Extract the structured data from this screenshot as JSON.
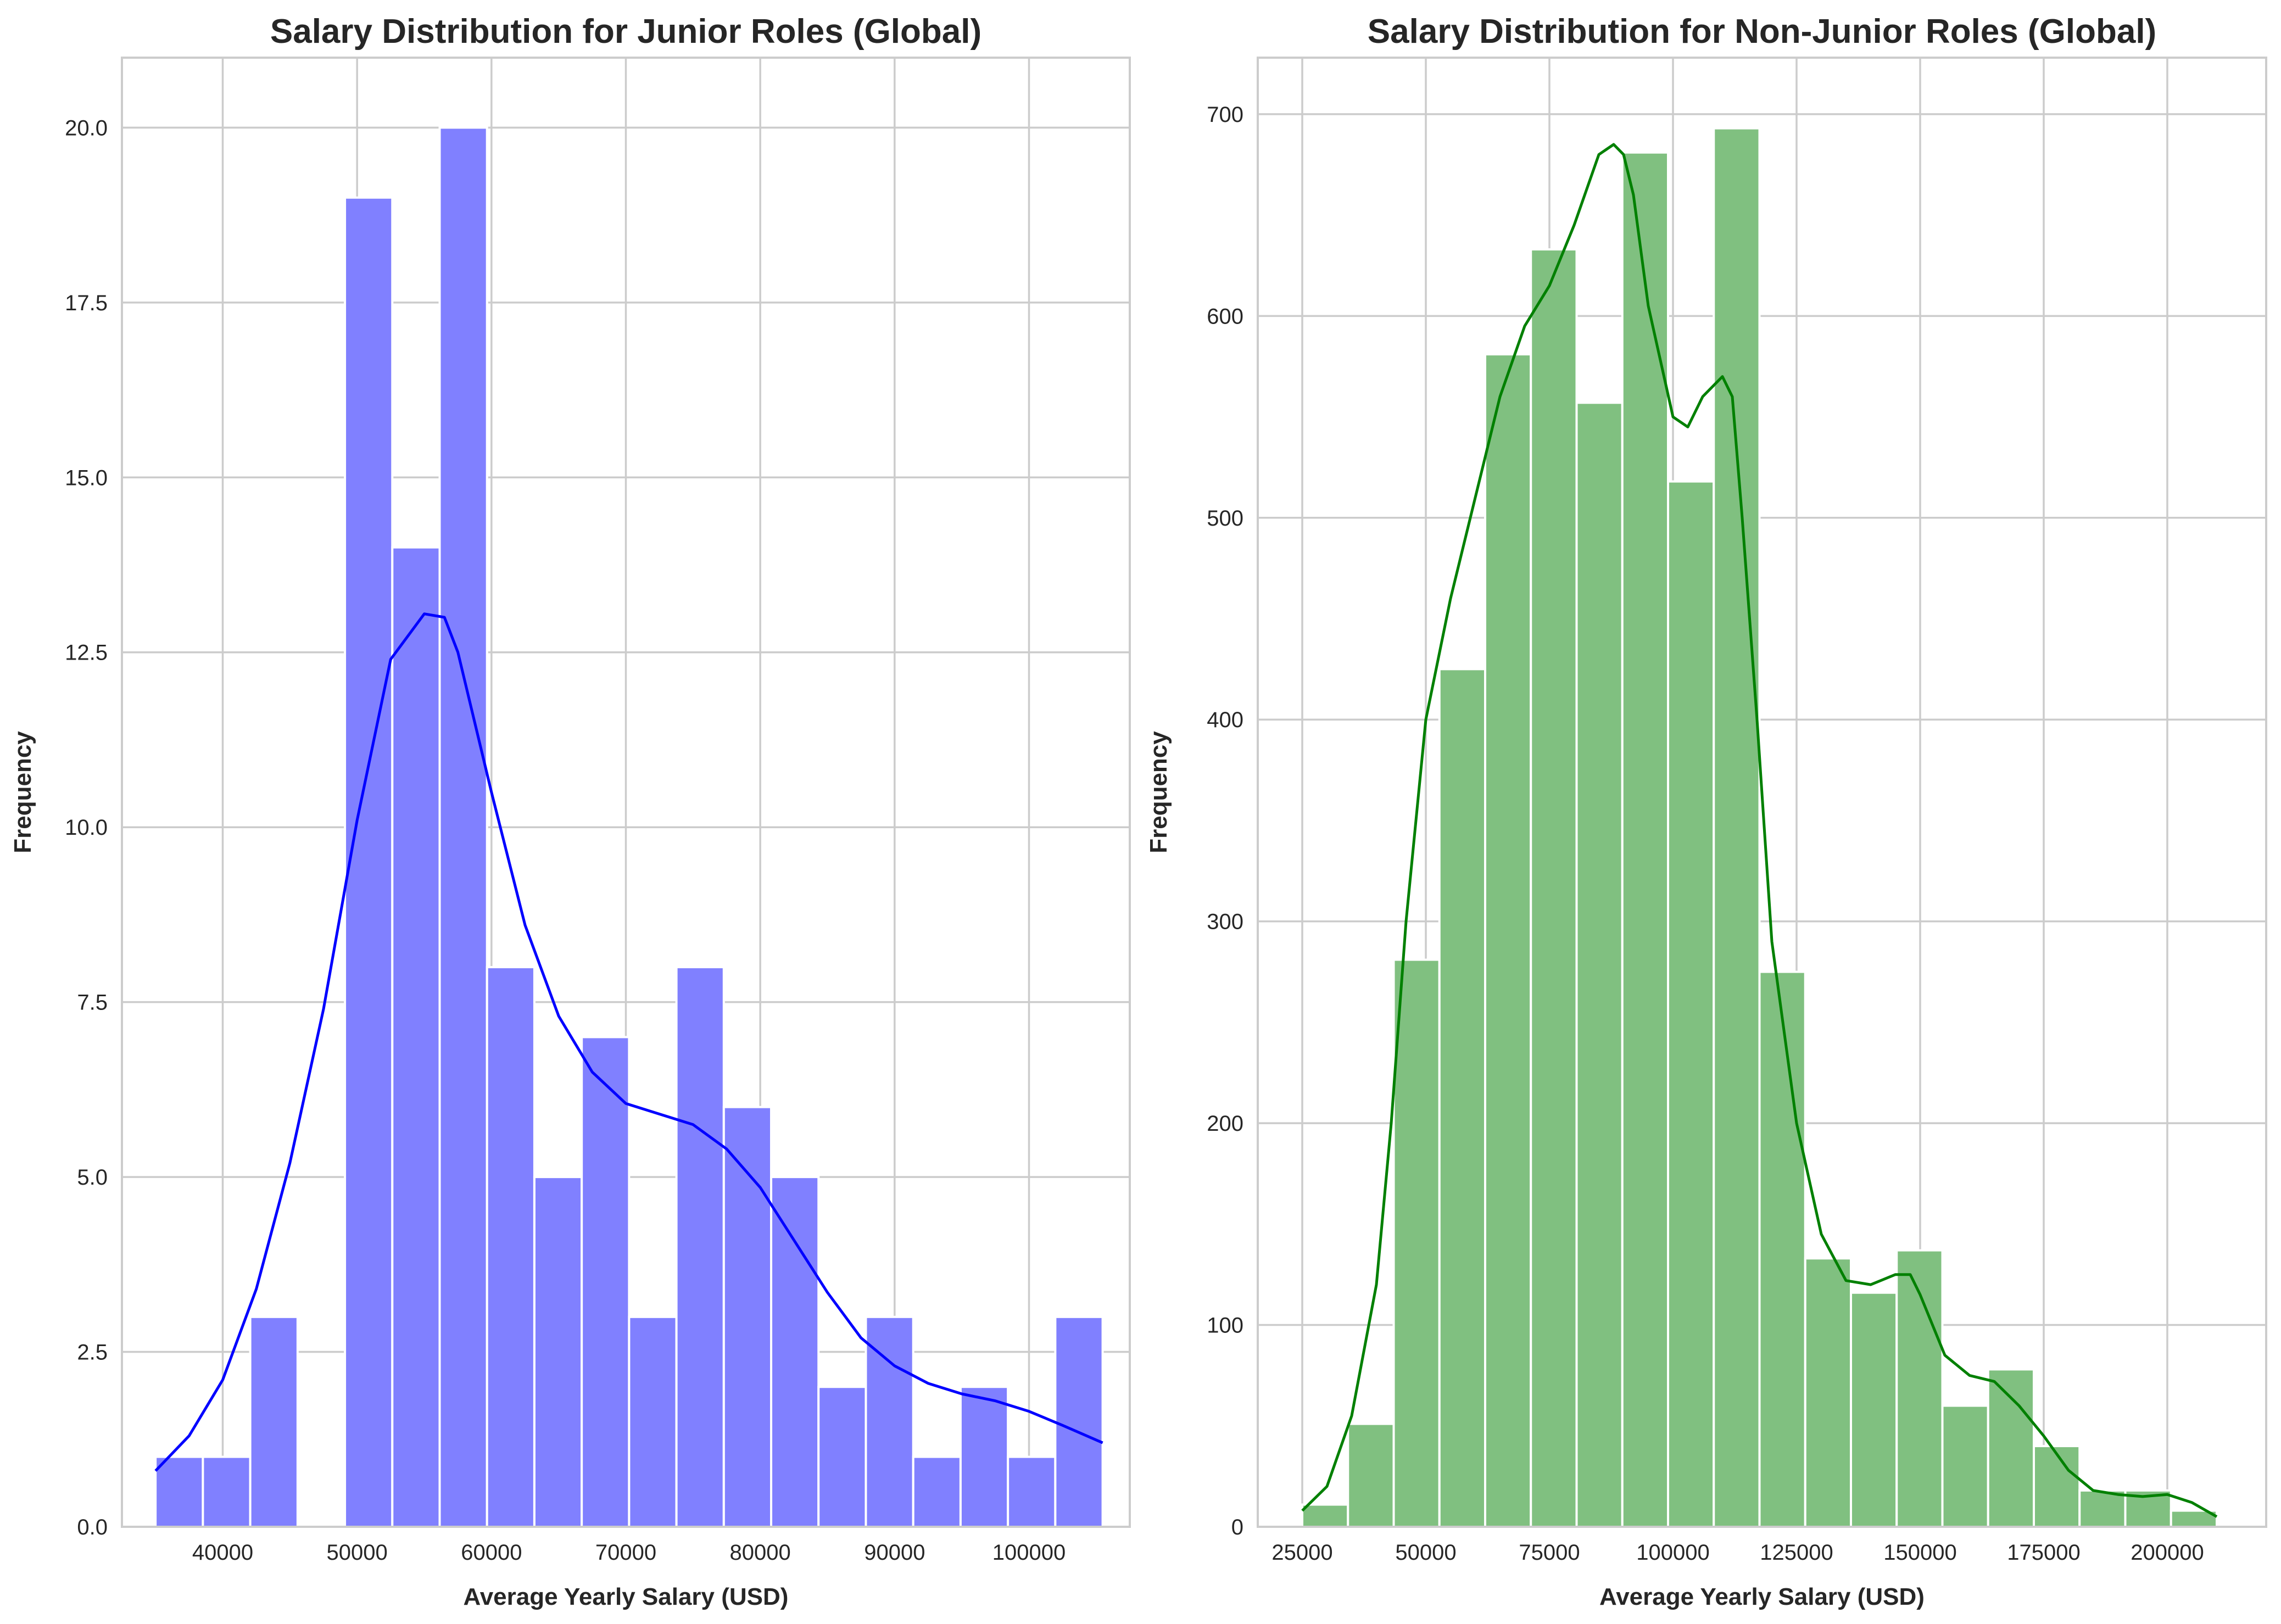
{
  "chart_data": [
    {
      "type": "bar",
      "title": "Salary Distribution for Junior Roles (Global)",
      "xlabel": "Average Yearly Salary (USD)",
      "ylabel": "Frequency",
      "xlim": [
        32500,
        107500
      ],
      "ylim": [
        0,
        21
      ],
      "x_ticks": [
        40000,
        50000,
        60000,
        70000,
        80000,
        90000,
        100000
      ],
      "y_ticks": [
        0.0,
        2.5,
        5.0,
        7.5,
        10.0,
        12.5,
        15.0,
        17.5,
        20.0
      ],
      "x_tick_labels": [
        "40000",
        "50000",
        "60000",
        "70000",
        "80000",
        "90000",
        "100000"
      ],
      "y_tick_labels": [
        "0.0",
        "2.5",
        "5.0",
        "7.5",
        "10.0",
        "12.5",
        "15.0",
        "17.5",
        "20.0"
      ],
      "bin_edges": [
        35000,
        38524,
        42048,
        45572,
        49096,
        52620,
        56144,
        59668,
        63192,
        66716,
        70240,
        73764,
        77288,
        80812,
        84336,
        87860,
        91384,
        94908,
        98432,
        101956,
        105480
      ],
      "counts": [
        1,
        1,
        3,
        0,
        19,
        14,
        20,
        8,
        5,
        7,
        3,
        8,
        6,
        5,
        2,
        3,
        1,
        2,
        1,
        3
      ],
      "color": "#8080ff",
      "kde_color": "#0000ff",
      "kde": {
        "x": [
          35000,
          37500,
          40000,
          42500,
          45000,
          47500,
          50000,
          52500,
          55000,
          56500,
          57500,
          60000,
          62500,
          65000,
          67500,
          70000,
          72500,
          75000,
          77500,
          80000,
          82500,
          85000,
          87500,
          90000,
          92500,
          95000,
          97500,
          100000,
          102500,
          105480
        ],
        "y": [
          0.8,
          1.3,
          2.1,
          3.4,
          5.2,
          7.4,
          10.1,
          12.4,
          13.05,
          13.0,
          12.5,
          10.5,
          8.6,
          7.3,
          6.5,
          6.05,
          5.9,
          5.75,
          5.4,
          4.85,
          4.1,
          3.35,
          2.7,
          2.3,
          2.05,
          1.9,
          1.8,
          1.65,
          1.45,
          1.2
        ]
      }
    },
    {
      "type": "bar",
      "title": "Salary Distribution for Non-Junior Roles (Global)",
      "xlabel": "Average Yearly Salary (USD)",
      "ylabel": "Frequency",
      "xlim": [
        16000,
        220000
      ],
      "ylim": [
        0,
        728
      ],
      "x_ticks": [
        25000,
        50000,
        75000,
        100000,
        125000,
        150000,
        175000,
        200000
      ],
      "y_ticks": [
        0,
        100,
        200,
        300,
        400,
        500,
        600,
        700
      ],
      "x_tick_labels": [
        "25000",
        "50000",
        "75000",
        "100000",
        "125000",
        "150000",
        "175000",
        "200000"
      ],
      "y_tick_labels": [
        "0",
        "100",
        "200",
        "300",
        "400",
        "500",
        "600",
        "700"
      ],
      "bin_edges": [
        25000,
        34250,
        43500,
        52750,
        62000,
        71250,
        80500,
        89750,
        99000,
        108250,
        117500,
        126750,
        136000,
        145250,
        154500,
        163750,
        173000,
        182250,
        191500,
        200750,
        210000
      ],
      "counts": [
        11,
        51,
        281,
        425,
        581,
        633,
        557,
        681,
        518,
        693,
        275,
        133,
        116,
        137,
        60,
        78,
        40,
        18,
        18,
        8
      ],
      "color": "#80c080",
      "kde_color": "#008000",
      "kde": {
        "x": [
          25000,
          30000,
          35000,
          40000,
          43000,
          46000,
          50000,
          55000,
          60000,
          65000,
          70000,
          75000,
          80000,
          85000,
          88000,
          90000,
          92000,
          95000,
          100000,
          103000,
          106000,
          110000,
          112000,
          114000,
          117000,
          120000,
          125000,
          130000,
          135000,
          140000,
          145000,
          148000,
          150000,
          155000,
          160000,
          165000,
          170000,
          175000,
          180000,
          185000,
          190000,
          195000,
          200000,
          205000,
          210000
        ],
        "y": [
          8,
          20,
          55,
          120,
          200,
          300,
          400,
          460,
          510,
          560,
          595,
          615,
          645,
          680,
          685,
          680,
          660,
          605,
          550,
          545,
          560,
          570,
          560,
          500,
          400,
          290,
          200,
          145,
          122,
          120,
          125,
          125,
          115,
          85,
          75,
          72,
          60,
          45,
          28,
          18,
          16,
          15,
          16,
          12,
          5
        ]
      }
    }
  ]
}
